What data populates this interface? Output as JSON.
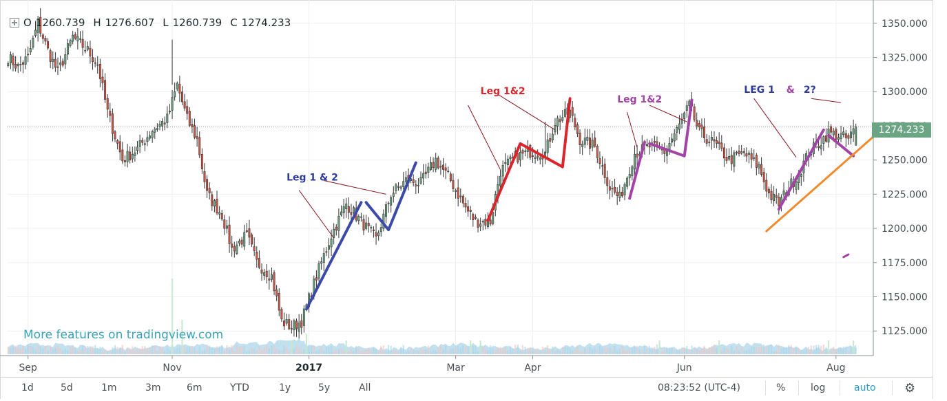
{
  "ohlc": {
    "o_label": "O",
    "o": "1260.739",
    "h_label": "H",
    "h": "1276.607",
    "l_label": "L",
    "l": "1260.739",
    "c_label": "C",
    "c": "1274.233"
  },
  "watermark": "More features on tradingview.com",
  "last_price": "1274.233",
  "toolbar": {
    "ranges": [
      "1d",
      "5d",
      "1m",
      "3m",
      "6m",
      "YTD",
      "1y",
      "5y",
      "All"
    ],
    "time": "08:23:52 (UTC-4)",
    "percent": "%",
    "log": "log",
    "auto": "auto"
  },
  "chart_data": {
    "type": "candlestick",
    "x_labels": [
      {
        "label": "Sep",
        "day": 8
      },
      {
        "label": "Nov",
        "day": 66
      },
      {
        "label": "2017",
        "day": 121
      },
      {
        "label": "Mar",
        "day": 180
      },
      {
        "label": "Apr",
        "day": 211
      },
      {
        "label": "Jun",
        "day": 272
      },
      {
        "label": "Aug",
        "day": 333
      }
    ],
    "y_ticks": [
      1125,
      1150,
      1175,
      1200,
      1225,
      1250,
      1275,
      1300,
      1325,
      1350
    ],
    "ylim": [
      1107,
      1367
    ],
    "xlim": [
      -0.5,
      348
    ],
    "last_price": 1274.233,
    "up_color": "#6ba583",
    "down_color": "#d75442",
    "volume_color": "#8fc7e0",
    "anchors": [
      [
        0,
        1325
      ],
      [
        4,
        1318
      ],
      [
        8,
        1325
      ],
      [
        12,
        1350
      ],
      [
        16,
        1330
      ],
      [
        20,
        1314
      ],
      [
        26,
        1340
      ],
      [
        32,
        1330
      ],
      [
        36,
        1320
      ],
      [
        40,
        1285
      ],
      [
        46,
        1250
      ],
      [
        52,
        1258
      ],
      [
        58,
        1272
      ],
      [
        64,
        1280
      ],
      [
        68,
        1305
      ],
      [
        72,
        1280
      ],
      [
        76,
        1265
      ],
      [
        80,
        1225
      ],
      [
        86,
        1210
      ],
      [
        90,
        1185
      ],
      [
        96,
        1195
      ],
      [
        100,
        1175
      ],
      [
        106,
        1165
      ],
      [
        110,
        1132
      ],
      [
        114,
        1128
      ],
      [
        118,
        1132
      ],
      [
        124,
        1165
      ],
      [
        130,
        1195
      ],
      [
        136,
        1218
      ],
      [
        142,
        1205
      ],
      [
        148,
        1192
      ],
      [
        154,
        1225
      ],
      [
        160,
        1235
      ],
      [
        166,
        1233
      ],
      [
        172,
        1250
      ],
      [
        178,
        1235
      ],
      [
        184,
        1215
      ],
      [
        188,
        1205
      ],
      [
        194,
        1205
      ],
      [
        198,
        1242
      ],
      [
        204,
        1252
      ],
      [
        210,
        1256
      ],
      [
        216,
        1255
      ],
      [
        220,
        1278
      ],
      [
        226,
        1285
      ],
      [
        230,
        1265
      ],
      [
        236,
        1260
      ],
      [
        242,
        1230
      ],
      [
        246,
        1222
      ],
      [
        252,
        1255
      ],
      [
        258,
        1260
      ],
      [
        264,
        1256
      ],
      [
        270,
        1275
      ],
      [
        274,
        1290
      ],
      [
        278,
        1270
      ],
      [
        284,
        1262
      ],
      [
        290,
        1250
      ],
      [
        296,
        1255
      ],
      [
        302,
        1245
      ],
      [
        306,
        1225
      ],
      [
        310,
        1218
      ],
      [
        314,
        1230
      ],
      [
        318,
        1240
      ],
      [
        322,
        1255
      ],
      [
        326,
        1262
      ],
      [
        330,
        1270
      ],
      [
        334,
        1268
      ],
      [
        338,
        1265
      ],
      [
        341,
        1274.233
      ]
    ],
    "volume_spikes": [
      [
        66,
        11
      ],
      [
        70,
        5
      ],
      [
        114,
        2
      ],
      [
        120,
        3
      ],
      [
        136,
        2
      ],
      [
        186,
        2
      ],
      [
        190,
        2
      ],
      [
        262,
        2
      ],
      [
        286,
        2
      ],
      [
        330,
        2
      ],
      [
        340,
        2
      ]
    ],
    "annotations": [
      {
        "text": "Leg 1 & 2",
        "x": 112,
        "y": 1235,
        "color": "#2b3a9e"
      },
      {
        "text": "Leg 1&2",
        "x": 190,
        "y": 1298,
        "color": "#d9252b"
      },
      {
        "text": "Leg 1&2",
        "x": 245,
        "y": 1292,
        "color": "#a144a6"
      },
      {
        "text": "LEG 1",
        "x": 296,
        "y": 1299,
        "color": "#2b3a9e"
      },
      {
        "text": "&",
        "x": 313,
        "y": 1299,
        "color": "#a144a6"
      },
      {
        "text": "2?",
        "x": 320,
        "y": 1299,
        "color": "#2b3a9e"
      }
    ],
    "drawings": [
      {
        "color": "#3b4aa8",
        "width": 4,
        "points": [
          [
            120,
            1141
          ],
          [
            142,
            1219
          ]
        ]
      },
      {
        "color": "#3b4aa8",
        "width": 4,
        "points": [
          [
            144,
            1219
          ],
          [
            153,
            1199
          ],
          [
            164,
            1248
          ]
        ]
      },
      {
        "color": "#d9252b",
        "width": 4,
        "points": [
          [
            193,
            1206
          ],
          [
            206,
            1262
          ],
          [
            223,
            1245
          ],
          [
            226,
            1295
          ]
        ]
      },
      {
        "color": "#a144a6",
        "width": 4,
        "points": [
          [
            250,
            1222
          ],
          [
            256,
            1263
          ]
        ]
      },
      {
        "color": "#a144a6",
        "width": 4,
        "points": [
          [
            258,
            1262
          ],
          [
            272,
            1253
          ],
          [
            275,
            1294
          ]
        ]
      },
      {
        "color": "#a144a6",
        "width": 4,
        "points": [
          [
            310,
            1214
          ],
          [
            328,
            1272
          ]
        ]
      },
      {
        "color": "#a144a6",
        "width": 4,
        "points": [
          [
            330,
            1268
          ],
          [
            340,
            1253
          ]
        ]
      },
      {
        "color": "#a144a6",
        "width": 3,
        "points": [
          [
            336,
            1179
          ],
          [
            338,
            1181
          ]
        ]
      },
      {
        "color": "#ef8a2e",
        "width": 3,
        "points": [
          [
            305,
            1198
          ],
          [
            348,
            1267
          ]
        ]
      }
    ],
    "leaders": [
      {
        "color": "#8a1620",
        "points": [
          [
            117,
            1228
          ],
          [
            131,
            1193
          ]
        ]
      },
      {
        "color": "#8a1620",
        "points": [
          [
            127,
            1235
          ],
          [
            152,
            1225
          ]
        ]
      },
      {
        "color": "#8a1620",
        "points": [
          [
            185,
            1290
          ],
          [
            198,
            1243
          ]
        ]
      },
      {
        "color": "#8a1620",
        "points": [
          [
            197,
            1298
          ],
          [
            220,
            1272
          ]
        ]
      },
      {
        "color": "#8a1620",
        "points": [
          [
            249,
            1285
          ],
          [
            253,
            1259
          ]
        ]
      },
      {
        "color": "#8a1620",
        "points": [
          [
            258,
            1290
          ],
          [
            273,
            1278
          ]
        ]
      },
      {
        "color": "#8a1620",
        "points": [
          [
            300,
            1295
          ],
          [
            317,
            1252
          ]
        ]
      },
      {
        "color": "#8a1620",
        "points": [
          [
            323,
            1295
          ],
          [
            335,
            1292
          ]
        ]
      }
    ]
  }
}
